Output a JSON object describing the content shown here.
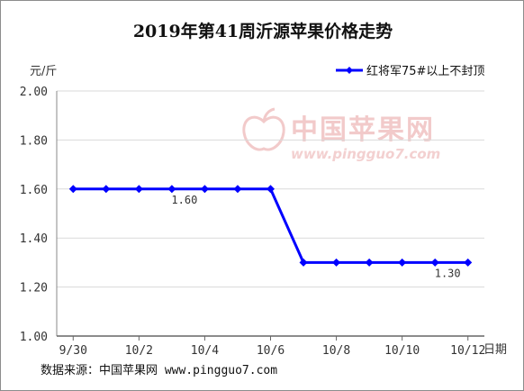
{
  "chart_data": {
    "type": "line",
    "title": "2019年第41周沂源苹果价格走势",
    "ylabel": "元/斤",
    "xlabel": "日期",
    "categories": [
      "9/30",
      "10/1",
      "10/2",
      "10/3",
      "10/4",
      "10/5",
      "10/6",
      "10/7",
      "10/8",
      "10/9",
      "10/10",
      "10/11",
      "10/12"
    ],
    "x_tick_labels": [
      "9/30",
      "10/2",
      "10/4",
      "10/6",
      "10/8",
      "10/10",
      "10/12"
    ],
    "y_tick_labels": [
      "2.00",
      "1.80",
      "1.60",
      "1.40",
      "1.20",
      "1.00"
    ],
    "ylim": [
      1.0,
      2.0
    ],
    "grid": true,
    "legend_position": "top-right",
    "series": [
      {
        "name": "红将军75#以上不封顶",
        "color": "#0000ff",
        "values": [
          1.6,
          1.6,
          1.6,
          1.6,
          1.6,
          1.6,
          1.6,
          1.3,
          1.3,
          1.3,
          1.3,
          1.3,
          1.3
        ]
      }
    ],
    "data_labels": [
      {
        "index": 3,
        "text": "1.60"
      },
      {
        "index": 11,
        "text": "1.30"
      }
    ]
  },
  "watermark": {
    "text": "中国苹果网",
    "url": "www.pingguo7.com"
  },
  "source_note": "数据来源：中国苹果网 www.pingguo7.com"
}
